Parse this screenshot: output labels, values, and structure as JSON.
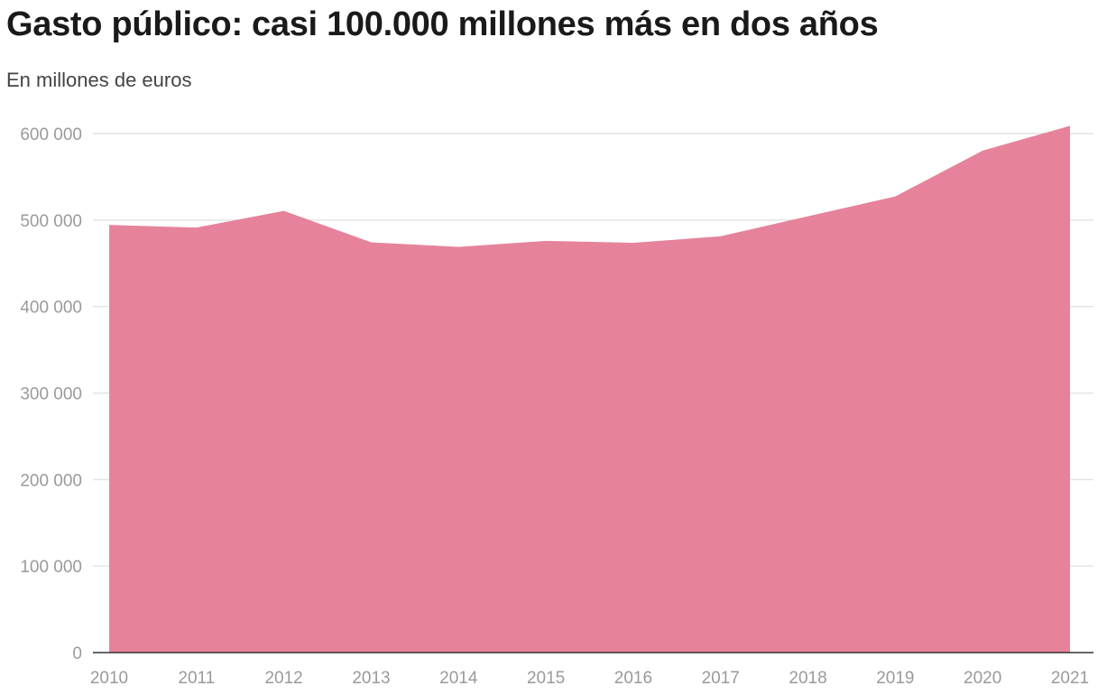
{
  "chart_data": {
    "type": "area",
    "title": "Gasto público: casi 100.000 millones más en dos años",
    "subtitle": "En millones de euros",
    "xlabel": "",
    "ylabel": "",
    "x": [
      "2010",
      "2011",
      "2012",
      "2013",
      "2014",
      "2015",
      "2016",
      "2017",
      "2018",
      "2019",
      "2020",
      "2021"
    ],
    "series": [
      {
        "name": "Gasto público",
        "values": [
          494400,
          491300,
          510700,
          474300,
          469000,
          476000,
          473700,
          481300,
          504400,
          527400,
          580300,
          609000
        ]
      }
    ],
    "ylim": [
      0,
      600000
    ],
    "yticks": [
      0,
      100000,
      200000,
      300000,
      400000,
      500000,
      600000
    ],
    "ytick_labels": [
      "0",
      "100 000",
      "200 000",
      "300 000",
      "400 000",
      "500 000",
      "600 000"
    ],
    "grid": true,
    "fill_color": "#e57f98",
    "legend": "none"
  }
}
